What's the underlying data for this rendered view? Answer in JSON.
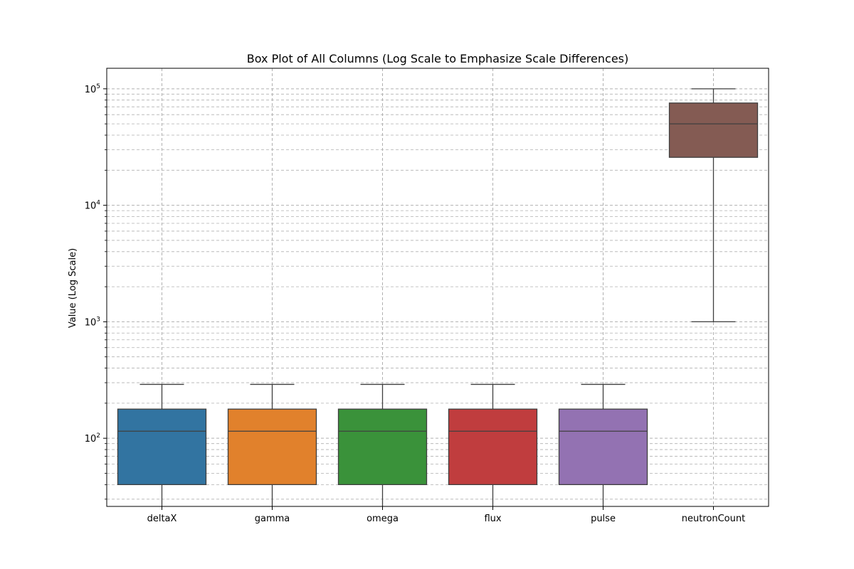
{
  "chart_data": {
    "type": "box",
    "title": "Box Plot of All Columns (Log Scale to Emphasize Scale Differences)",
    "xlabel": "",
    "ylabel": "Value (Log Scale)",
    "yscale": "log",
    "ylim": [
      26,
      150000
    ],
    "yticks": [
      {
        "base": "10",
        "exp": "2",
        "value": 100
      },
      {
        "base": "10",
        "exp": "3",
        "value": 1000
      },
      {
        "base": "10",
        "exp": "4",
        "value": 10000
      },
      {
        "base": "10",
        "exp": "5",
        "value": 100000
      }
    ],
    "grid": true,
    "categories": [
      "deltaX",
      "gamma",
      "omega",
      "flux",
      "pulse",
      "neutronCount"
    ],
    "boxes": [
      {
        "category": "deltaX",
        "whisker_low": 26,
        "q1": 40,
        "median": 115,
        "q3": 178,
        "whisker_high": 290,
        "color": "#3274a1"
      },
      {
        "category": "gamma",
        "whisker_low": 26,
        "q1": 40,
        "median": 115,
        "q3": 178,
        "whisker_high": 290,
        "color": "#e1812c"
      },
      {
        "category": "omega",
        "whisker_low": 26,
        "q1": 40,
        "median": 115,
        "q3": 178,
        "whisker_high": 290,
        "color": "#3a923a"
      },
      {
        "category": "flux",
        "whisker_low": 26,
        "q1": 40,
        "median": 115,
        "q3": 178,
        "whisker_high": 290,
        "color": "#c03d3e"
      },
      {
        "category": "pulse",
        "whisker_low": 26,
        "q1": 40,
        "median": 115,
        "q3": 178,
        "whisker_high": 290,
        "color": "#9372b2"
      },
      {
        "category": "neutronCount",
        "whisker_low": 1000,
        "q1": 25800,
        "median": 50000,
        "q3": 75500,
        "whisker_high": 100000,
        "color": "#845b53"
      }
    ]
  }
}
